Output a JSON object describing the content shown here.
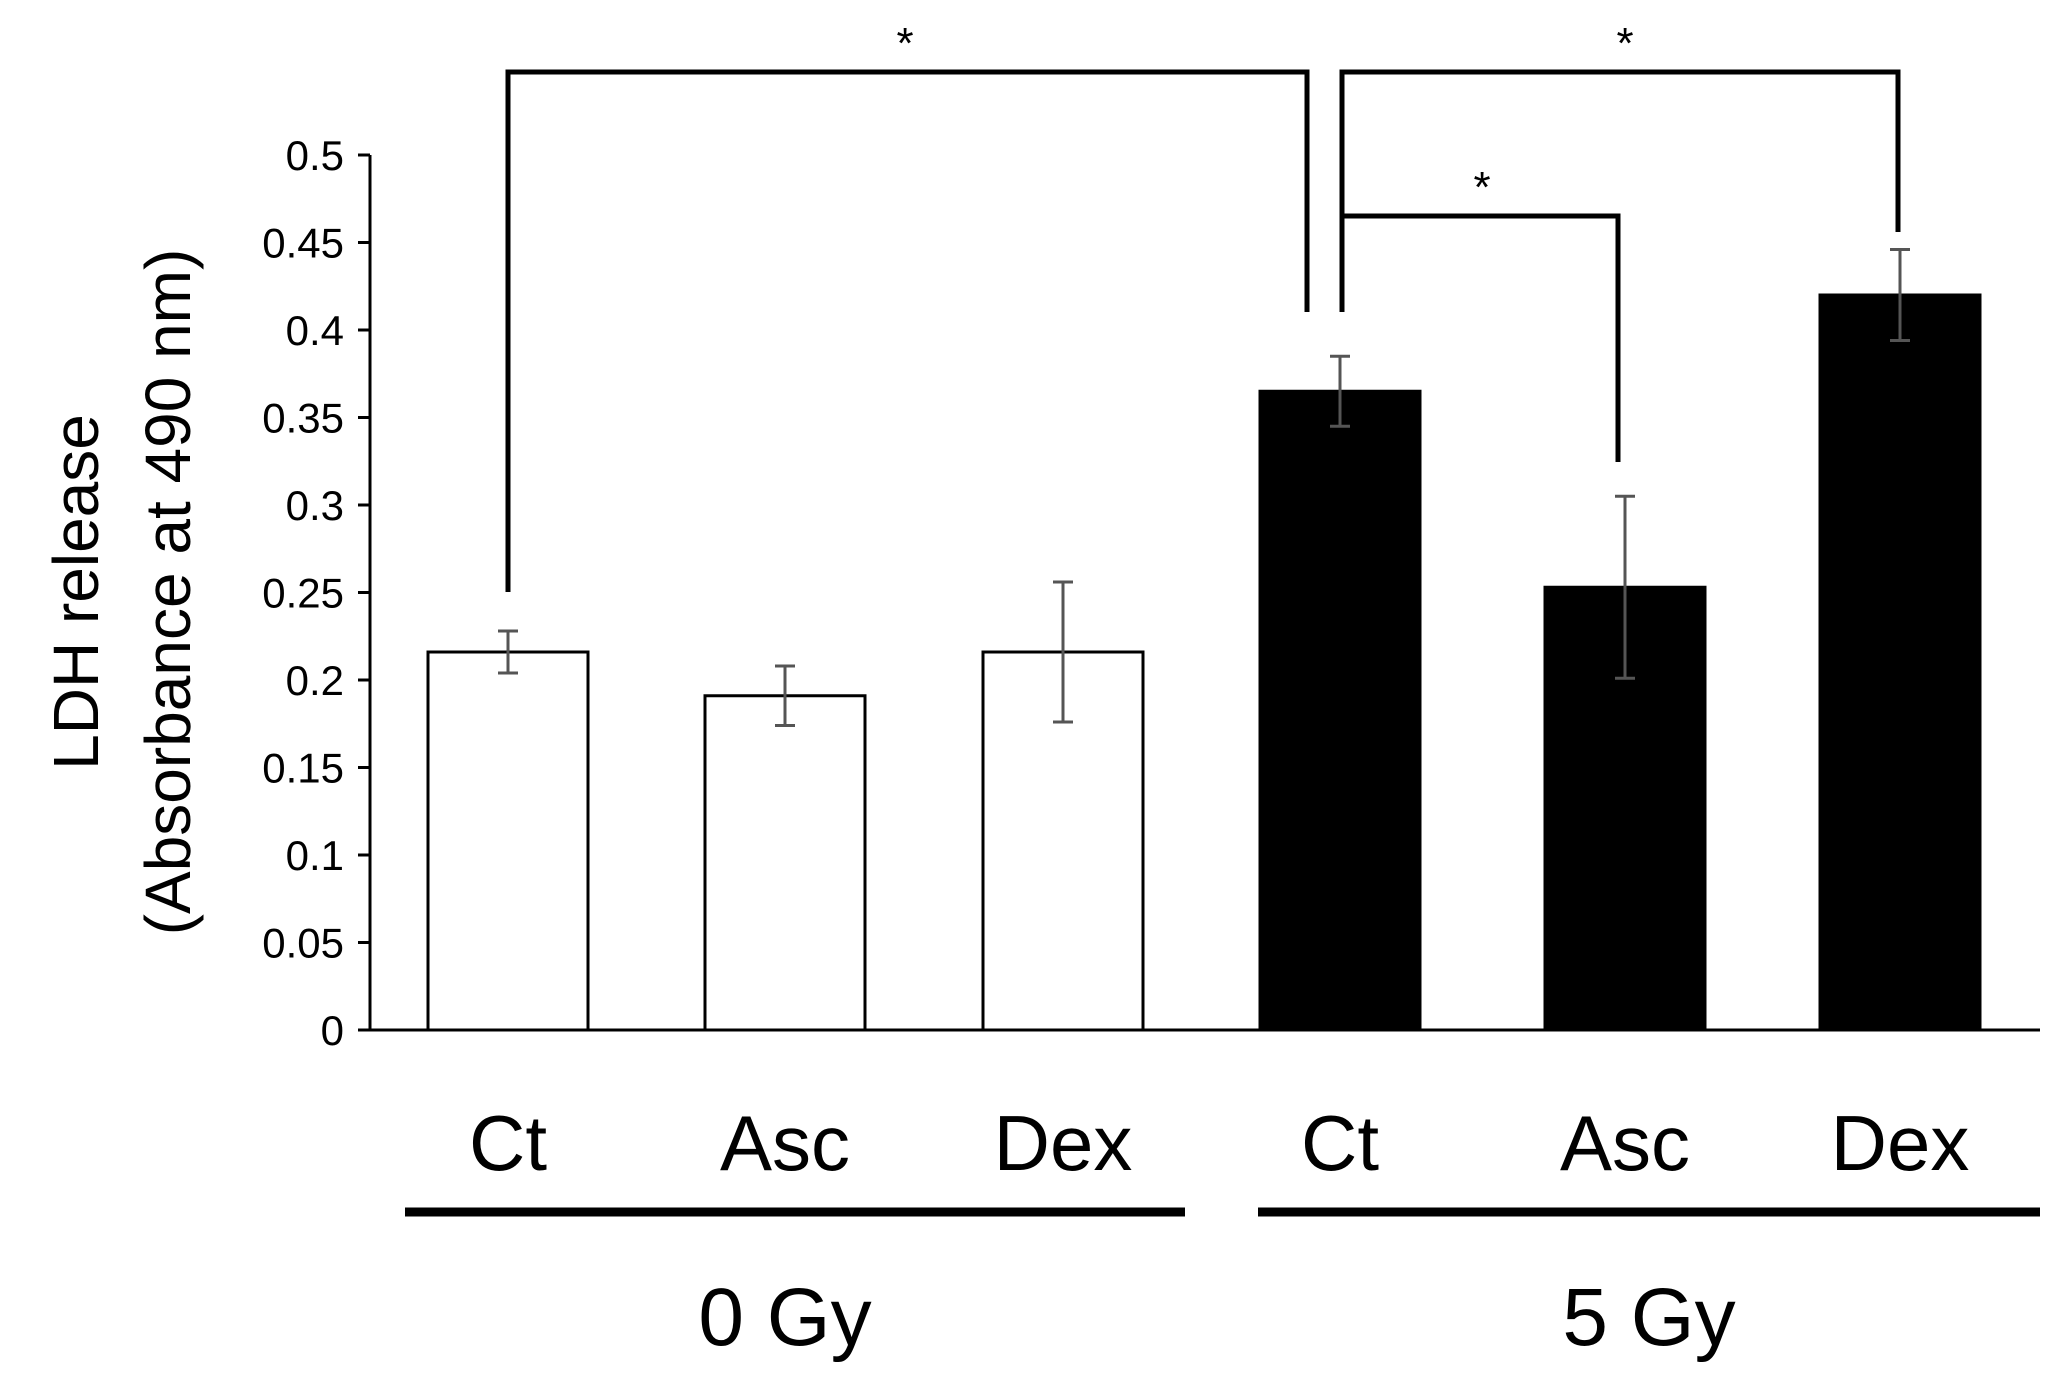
{
  "chart_data": {
    "type": "bar",
    "title": "",
    "xlabel": "",
    "ylabel_line1": "LDH release",
    "ylabel_line2": "(Absorbance at 490 nm)",
    "ylim": [
      0,
      0.5
    ],
    "yticks": [
      "0",
      "0.05",
      "0.1",
      "0.15",
      "0.2",
      "0.25",
      "0.3",
      "0.35",
      "0.4",
      "0.45",
      "0.5"
    ],
    "bars": [
      {
        "category": "Ct",
        "group": "0 Gy",
        "value": 0.216,
        "error": 0.012,
        "fill": "#ffffff"
      },
      {
        "category": "Asc",
        "group": "0 Gy",
        "value": 0.191,
        "error": 0.017,
        "fill": "#ffffff"
      },
      {
        "category": "Dex",
        "group": "0 Gy",
        "value": 0.216,
        "error": 0.04,
        "fill": "#ffffff"
      },
      {
        "category": "Ct",
        "group": "5 Gy",
        "value": 0.365,
        "error": 0.02,
        "fill": "#000000"
      },
      {
        "category": "Asc",
        "group": "5 Gy",
        "value": 0.253,
        "error": 0.052,
        "fill": "#000000"
      },
      {
        "category": "Dex",
        "group": "5 Gy",
        "value": 0.42,
        "error": 0.026,
        "fill": "#000000"
      }
    ],
    "groups": [
      "0 Gy",
      "5 Gy"
    ],
    "significance": [
      {
        "from": 0,
        "to": 3,
        "label": "*"
      },
      {
        "from": 3,
        "to": 5,
        "label": "*"
      },
      {
        "from": 3,
        "to": 4,
        "label": "*"
      }
    ]
  }
}
